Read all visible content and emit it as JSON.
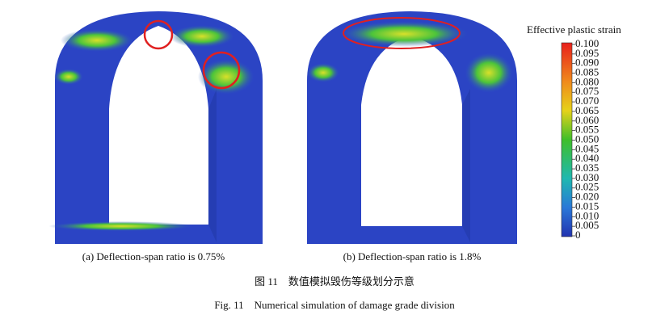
{
  "panels": [
    {
      "caption": "(a) Deflection-span ratio is 0.75%"
    },
    {
      "caption": "(b) Deflection-span ratio is 1.8%"
    }
  ],
  "colorbar": {
    "title": "Effective plastic strain",
    "labels": [
      "0.100",
      "0.095",
      "0.090",
      "0.085",
      "0.080",
      "0.075",
      "0.070",
      "0.065",
      "0.060",
      "0.055",
      "0.050",
      "0.045",
      "0.040",
      "0.035",
      "0.030",
      "0.025",
      "0.020",
      "0.015",
      "0.010",
      "0.005",
      "0"
    ]
  },
  "figure": {
    "caption_zh": "图 11　数值模拟毁伤等级划分示意",
    "caption_en": "Fig. 11　Numerical simulation of damage grade division"
  }
}
